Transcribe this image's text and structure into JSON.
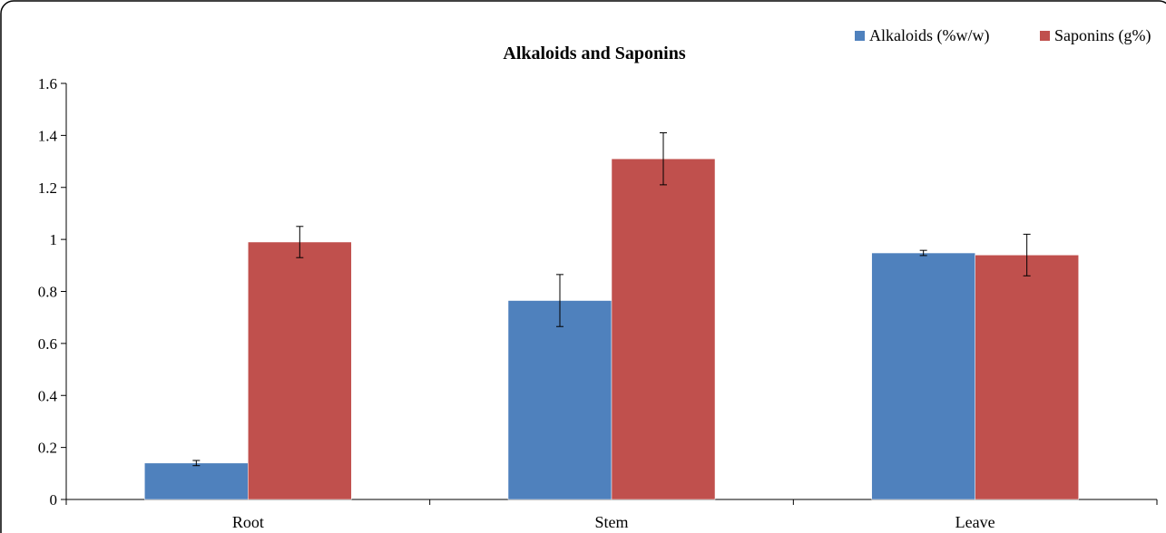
{
  "chart_data": {
    "type": "bar",
    "title": "Alkaloids and Saponins",
    "xlabel": "",
    "ylabel": "",
    "categories": [
      "Root",
      "Stem",
      "Leave"
    ],
    "ylim": [
      0,
      1.6
    ],
    "yticks": [
      "0",
      "0.2",
      "0.4",
      "0.6",
      "0.8",
      "1",
      "1.2",
      "1.4",
      "1.6"
    ],
    "grid": false,
    "legend": "top-right",
    "series": [
      {
        "name": "Alkaloids (%w/w)",
        "color": "#4F81BD",
        "values": [
          0.14,
          0.765,
          0.948
        ],
        "errors": [
          0.01,
          0.1,
          0.01
        ]
      },
      {
        "name": "Saponins (g%)",
        "color": "#C0504D",
        "values": [
          0.99,
          1.31,
          0.94
        ],
        "errors": [
          0.06,
          0.1,
          0.08
        ]
      }
    ]
  }
}
